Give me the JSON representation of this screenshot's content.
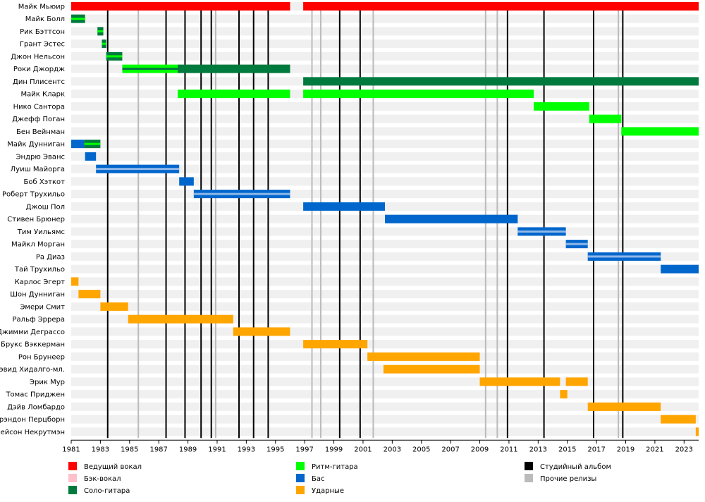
{
  "chart_data": {
    "type": "timeline",
    "x_range": [
      1981,
      2024
    ],
    "year_ticks": [
      "1981",
      "1983",
      "1985",
      "1987",
      "1989",
      "1991",
      "1993",
      "1995",
      "1997",
      "1999",
      "2001",
      "2003",
      "2005",
      "2007",
      "2009",
      "2011",
      "2013",
      "2015",
      "2017",
      "2019",
      "2021",
      "2023"
    ],
    "roles": {
      "vocals": {
        "label": "Ведущий вокал",
        "color": "#ff0000"
      },
      "backing": {
        "label": "Бэк-вокал",
        "color": "#ffc0cb"
      },
      "lead": {
        "label": "Соло-гитара",
        "color": "#007a3d"
      },
      "rhythm": {
        "label": "Ритм-гитара",
        "color": "#00ff00"
      },
      "bass": {
        "label": "Бас",
        "color": "#0066cc"
      },
      "drums": {
        "label": "Ударные",
        "color": "#ffa500"
      },
      "studio": {
        "label": "Студийный альбом",
        "color": "#000000"
      },
      "other": {
        "label": "Прочие релизы",
        "color": "#bbbbbb"
      }
    },
    "members": [
      {
        "name": "Майк Мьюир",
        "bars": [
          {
            "from": 1981,
            "to": 1996,
            "role": "vocals"
          },
          {
            "from": 1996.9,
            "to": 2024,
            "role": "vocals"
          }
        ]
      },
      {
        "name": "Майк Болл",
        "bars": [
          {
            "from": 1981,
            "to": 1981.95,
            "role": "lead",
            "stripe": "rhythm"
          }
        ]
      },
      {
        "name": "Рик Бэттсон",
        "bars": [
          {
            "from": 1982.8,
            "to": 1983.2,
            "role": "lead",
            "stripe": "rhythm"
          }
        ]
      },
      {
        "name": "Грант Эстес",
        "bars": [
          {
            "from": 1983.1,
            "to": 1983.4,
            "role": "lead",
            "stripe": "rhythm"
          }
        ]
      },
      {
        "name": "Джон Нельсон",
        "bars": [
          {
            "from": 1983.4,
            "to": 1984.5,
            "role": "lead",
            "stripe": "rhythm"
          }
        ]
      },
      {
        "name": "Роки Джордж",
        "bars": [
          {
            "from": 1984.5,
            "to": 1988.3,
            "role": "rhythm",
            "stripe": "lead"
          },
          {
            "from": 1988.3,
            "to": 1996,
            "role": "lead"
          }
        ]
      },
      {
        "name": "Дин Плисентс",
        "bars": [
          {
            "from": 1996.9,
            "to": 2024,
            "role": "lead"
          }
        ]
      },
      {
        "name": "Майк Кларк",
        "bars": [
          {
            "from": 1988.3,
            "to": 1996,
            "role": "rhythm"
          },
          {
            "from": 1996.9,
            "to": 2012.7,
            "role": "rhythm"
          }
        ]
      },
      {
        "name": "Нико Сантора",
        "bars": [
          {
            "from": 2012.7,
            "to": 2016.5,
            "role": "rhythm"
          }
        ]
      },
      {
        "name": "Джефф Поган",
        "bars": [
          {
            "from": 2016.5,
            "to": 2018.7,
            "role": "rhythm"
          }
        ]
      },
      {
        "name": "Бен Вейнман",
        "bars": [
          {
            "from": 2018.7,
            "to": 2024,
            "role": "rhythm"
          }
        ]
      },
      {
        "name": "Майк Дунниган",
        "bars": [
          {
            "from": 1981,
            "to": 1981.9,
            "role": "bass"
          },
          {
            "from": 1981.9,
            "to": 1983,
            "role": "lead",
            "stripe": "rhythm"
          }
        ]
      },
      {
        "name": "Эндрю Эванс",
        "bars": [
          {
            "from": 1981.95,
            "to": 1982.7,
            "role": "bass"
          }
        ]
      },
      {
        "name": "Луиш Майорга",
        "bars": [
          {
            "from": 1982.7,
            "to": 1988.4,
            "role": "bass",
            "stripe": "pale"
          }
        ]
      },
      {
        "name": "Боб Хэткот",
        "bars": [
          {
            "from": 1988.4,
            "to": 1989.4,
            "role": "bass"
          }
        ]
      },
      {
        "name": "Роберт Трухильо",
        "bars": [
          {
            "from": 1989.4,
            "to": 1996,
            "role": "bass",
            "stripe": "pale"
          }
        ]
      },
      {
        "name": "Джош Пол",
        "bars": [
          {
            "from": 1996.9,
            "to": 2002.5,
            "role": "bass"
          }
        ]
      },
      {
        "name": "Стивен Брюнер",
        "bars": [
          {
            "from": 2002.5,
            "to": 2011.6,
            "role": "bass"
          }
        ]
      },
      {
        "name": "Тим Уильямс",
        "bars": [
          {
            "from": 2011.6,
            "to": 2014.9,
            "role": "bass",
            "stripe": "pale"
          }
        ]
      },
      {
        "name": "Майкл Морган",
        "bars": [
          {
            "from": 2014.9,
            "to": 2016.4,
            "role": "bass",
            "stripe": "pale"
          }
        ]
      },
      {
        "name": "Ра Диаз",
        "bars": [
          {
            "from": 2016.4,
            "to": 2021.4,
            "role": "bass",
            "stripe": "pale"
          }
        ]
      },
      {
        "name": "Тай Трухильо",
        "bars": [
          {
            "from": 2021.4,
            "to": 2024,
            "role": "bass"
          }
        ]
      },
      {
        "name": "Карлос Эгерт",
        "bars": [
          {
            "from": 1981,
            "to": 1981.5,
            "role": "drums"
          }
        ]
      },
      {
        "name": "Шон Дунниган",
        "bars": [
          {
            "from": 1981.5,
            "to": 1983,
            "role": "drums"
          }
        ]
      },
      {
        "name": "Эмери Смит",
        "bars": [
          {
            "from": 1983,
            "to": 1984.9,
            "role": "drums"
          }
        ]
      },
      {
        "name": "Ральф Эррера",
        "bars": [
          {
            "from": 1984.9,
            "to": 1992.1,
            "role": "drums"
          }
        ]
      },
      {
        "name": "Джимми Деграссо",
        "bars": [
          {
            "from": 1992.1,
            "to": 1996,
            "role": "drums"
          }
        ]
      },
      {
        "name": "Брукс Вэккерман",
        "bars": [
          {
            "from": 1996.9,
            "to": 2001.3,
            "role": "drums"
          }
        ]
      },
      {
        "name": "Рон Брунеер",
        "bars": [
          {
            "from": 2001.3,
            "to": 2009,
            "role": "drums"
          }
        ]
      },
      {
        "name": "Дэвид Хидалго-мл.",
        "bars": [
          {
            "from": 2002.4,
            "to": 2009,
            "role": "drums"
          }
        ]
      },
      {
        "name": "Эрик Мур",
        "bars": [
          {
            "from": 2009,
            "to": 2014.5,
            "role": "drums"
          },
          {
            "from": 2014.9,
            "to": 2016.4,
            "role": "drums"
          }
        ]
      },
      {
        "name": "Томас Приджен",
        "bars": [
          {
            "from": 2014.5,
            "to": 2015,
            "role": "drums"
          }
        ]
      },
      {
        "name": "Дэйв Ломбардо",
        "bars": [
          {
            "from": 2016.4,
            "to": 2021.4,
            "role": "drums"
          }
        ]
      },
      {
        "name": "Брэндон Перцборн",
        "bars": [
          {
            "from": 2021.4,
            "to": 2023.8,
            "role": "drums"
          }
        ]
      },
      {
        "name": "Грейсон Некрутмэн",
        "bars": [
          {
            "from": 2023.8,
            "to": 2024,
            "role": "drums"
          }
        ]
      }
    ],
    "studio_albums": [
      1983.5,
      1987.5,
      1988.8,
      1989.9,
      1990.6,
      1992.5,
      1993.5,
      1994.5,
      1999.4,
      2000.8,
      2010.9,
      2013.4,
      2016.8,
      2018.8
    ],
    "other_releases": [
      1985.6,
      1990.9,
      1997.5,
      1998.1,
      2001.7,
      2009.4,
      2010.2,
      2018.5
    ],
    "legend": [
      {
        "role": "vocals",
        "col": 0,
        "row": 0
      },
      {
        "role": "backing",
        "col": 0,
        "row": 1
      },
      {
        "role": "lead",
        "col": 0,
        "row": 2
      },
      {
        "role": "rhythm",
        "col": 1,
        "row": 0
      },
      {
        "role": "bass",
        "col": 1,
        "row": 1
      },
      {
        "role": "drums",
        "col": 1,
        "row": 2
      },
      {
        "role": "studio",
        "col": 2,
        "row": 0
      },
      {
        "role": "other",
        "col": 2,
        "row": 1
      }
    ]
  }
}
